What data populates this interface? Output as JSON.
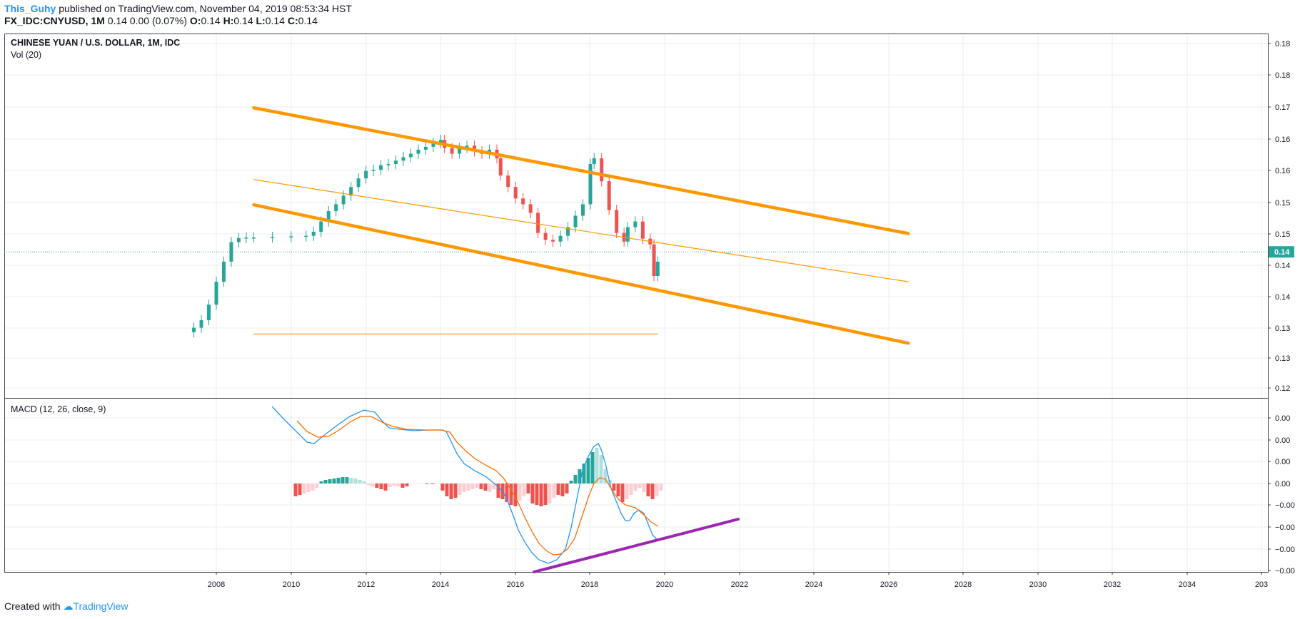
{
  "header": {
    "author": "This_Guhy",
    "published_text": "published on TradingView.com, November 04, 2019 08:53:34 HST",
    "symbol": "FX_IDC:CNYUSD, 1M",
    "quote": "0.14 0.00 (0.07%)",
    "o_label": "O:",
    "o_value": "0.14",
    "h_label": "H:",
    "h_value": "0.14",
    "l_label": "L:",
    "l_value": "0.14",
    "c_label": "C:",
    "c_value": "0.14"
  },
  "main_pane": {
    "title": "CHINESE YUAN / U.S. DOLLAR, 1M, IDC",
    "volume_label": "Vol (20)",
    "price_labels": [
      "0.18",
      "0.18",
      "0.17",
      "0.16",
      "0.16",
      "0.15",
      "0.15",
      "0.14",
      "0.14",
      "0.13",
      "0.13",
      "0.12"
    ],
    "last_price_label": "0.14"
  },
  "macd_pane": {
    "title": "MACD (12, 26, close, 9)",
    "labels": [
      "0.00",
      "0.00",
      "0.00",
      "0.00",
      "−0.00",
      "−0.00",
      "−0.00",
      "−0.00"
    ]
  },
  "x_axis": {
    "labels": [
      "2008",
      "2010",
      "2012",
      "2014",
      "2016",
      "2018",
      "2020",
      "2022",
      "2024",
      "2026",
      "2028",
      "2030",
      "2032",
      "2034",
      "203"
    ]
  },
  "colors": {
    "up": "#26a69a",
    "down": "#ef5350",
    "up_light": "#b2dfdb",
    "down_light": "#ffcdd2",
    "channel": "#ff9800",
    "macd_line": "#2196f3",
    "signal_line": "#ff6d00",
    "trendline": "#9c27b0",
    "grid": "#e8edf2",
    "last_price": "#26a69a"
  },
  "chart_data": {
    "type": "candlestick",
    "symbol": "CNYUSD",
    "interval": "1M",
    "x": [
      "2007.4",
      "2007.6",
      "2007.8",
      "2008.0",
      "2008.2",
      "2008.4",
      "2008.6",
      "2008.8",
      "2009.0",
      "2009.5",
      "2010.0",
      "2010.4",
      "2010.6",
      "2010.8",
      "2011.0",
      "2011.2",
      "2011.4",
      "2011.6",
      "2011.8",
      "2012.0",
      "2012.2",
      "2012.4",
      "2012.6",
      "2012.8",
      "2013.0",
      "2013.2",
      "2013.4",
      "2013.6",
      "2013.8",
      "2014.0",
      "2014.1",
      "2014.3",
      "2014.5",
      "2014.7",
      "2014.9",
      "2015.1",
      "2015.3",
      "2015.5",
      "2015.6",
      "2015.8",
      "2016.0",
      "2016.2",
      "2016.4",
      "2016.6",
      "2016.8",
      "2017.0",
      "2017.2",
      "2017.4",
      "2017.6",
      "2017.8",
      "2018.0",
      "2018.1",
      "2018.3",
      "2018.5",
      "2018.7",
      "2018.9",
      "2019.0",
      "2019.2",
      "2019.4",
      "2019.6",
      "2019.7",
      "2019.8"
    ],
    "close": [
      0.1305,
      0.1318,
      0.1345,
      0.1385,
      0.142,
      0.1454,
      0.1461,
      0.1462,
      0.1462,
      0.1463,
      0.1464,
      0.1465,
      0.1472,
      0.149,
      0.1508,
      0.152,
      0.1535,
      0.155,
      0.1565,
      0.1578,
      0.158,
      0.1588,
      0.159,
      0.1596,
      0.1602,
      0.1608,
      0.1615,
      0.162,
      0.1626,
      0.1632,
      0.1618,
      0.1608,
      0.1618,
      0.1622,
      0.1612,
      0.1608,
      0.1615,
      0.16,
      0.157,
      0.155,
      0.153,
      0.152,
      0.1505,
      0.147,
      0.1458,
      0.1455,
      0.1465,
      0.148,
      0.15,
      0.152,
      0.159,
      0.16,
      0.156,
      0.151,
      0.147,
      0.1455,
      0.148,
      0.149,
      0.146,
      0.145,
      0.1395,
      0.142
    ],
    "channel": {
      "upper_line": {
        "from": [
          "2009.0",
          0.1688
        ],
        "to": [
          "2026.5",
          0.1469
        ]
      },
      "middle_line": {
        "from": [
          "2009.0",
          0.1563
        ],
        "to": [
          "2026.5",
          0.1385
        ]
      },
      "lower_line": {
        "from": [
          "2009.0",
          0.1519
        ],
        "to": [
          "2026.5",
          0.1278
        ]
      },
      "horizontal_line": {
        "from": [
          "2009.0",
          0.1294
        ],
        "to": [
          "2019.8",
          0.1294
        ]
      }
    },
    "last_price": 0.14,
    "macd_trendline": {
      "from": [
        "2016.5",
        "min"
      ],
      "to": [
        "2022.0",
        "rising"
      ]
    },
    "x_ticks": [
      "2008",
      "2010",
      "2012",
      "2014",
      "2016",
      "2018",
      "2020",
      "2022",
      "2024",
      "2026",
      "2028",
      "2030",
      "2032",
      "2034"
    ],
    "y_ticks": [
      "0.18",
      "0.18",
      "0.17",
      "0.16",
      "0.16",
      "0.15",
      "0.15",
      "0.14",
      "0.14",
      "0.13",
      "0.13",
      "0.12"
    ],
    "grid": true
  },
  "footer": {
    "created_with": "Created with",
    "brand": "TradingView"
  }
}
